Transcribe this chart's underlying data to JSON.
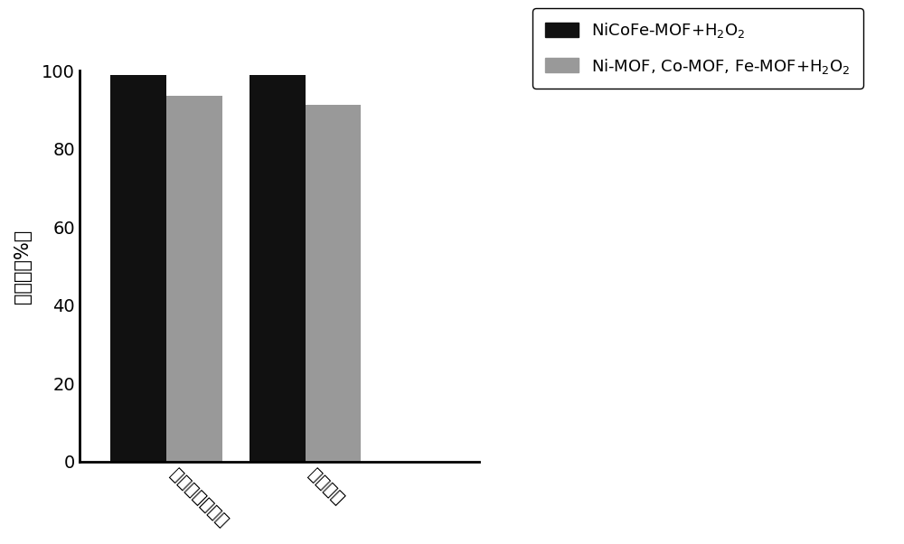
{
  "categories": [
    "金黄色葡萄球菌",
    "沙门氏菌"
  ],
  "series": [
    {
      "label": "NiCoFe-MOF+H$_2$O$_2$",
      "values": [
        99.0,
        98.8
      ],
      "color": "#111111"
    },
    {
      "label": "Ni-MOF, Co-MOF, Fe-MOF+H$_2$O$_2$",
      "values": [
        93.5,
        91.2
      ],
      "color": "#999999"
    }
  ],
  "ylabel_chars": [
    "杀",
    "菌",
    "率",
    "(%)",
    ""
  ],
  "ylim": [
    0,
    100
  ],
  "yticks": [
    0,
    20,
    40,
    60,
    80,
    100
  ],
  "bar_width": 0.32,
  "figsize": [
    10.0,
    6.02
  ],
  "dpi": 100,
  "background_color": "#ffffff",
  "font_size_ticks": 14,
  "font_size_ylabel": 15,
  "font_size_legend": 13
}
